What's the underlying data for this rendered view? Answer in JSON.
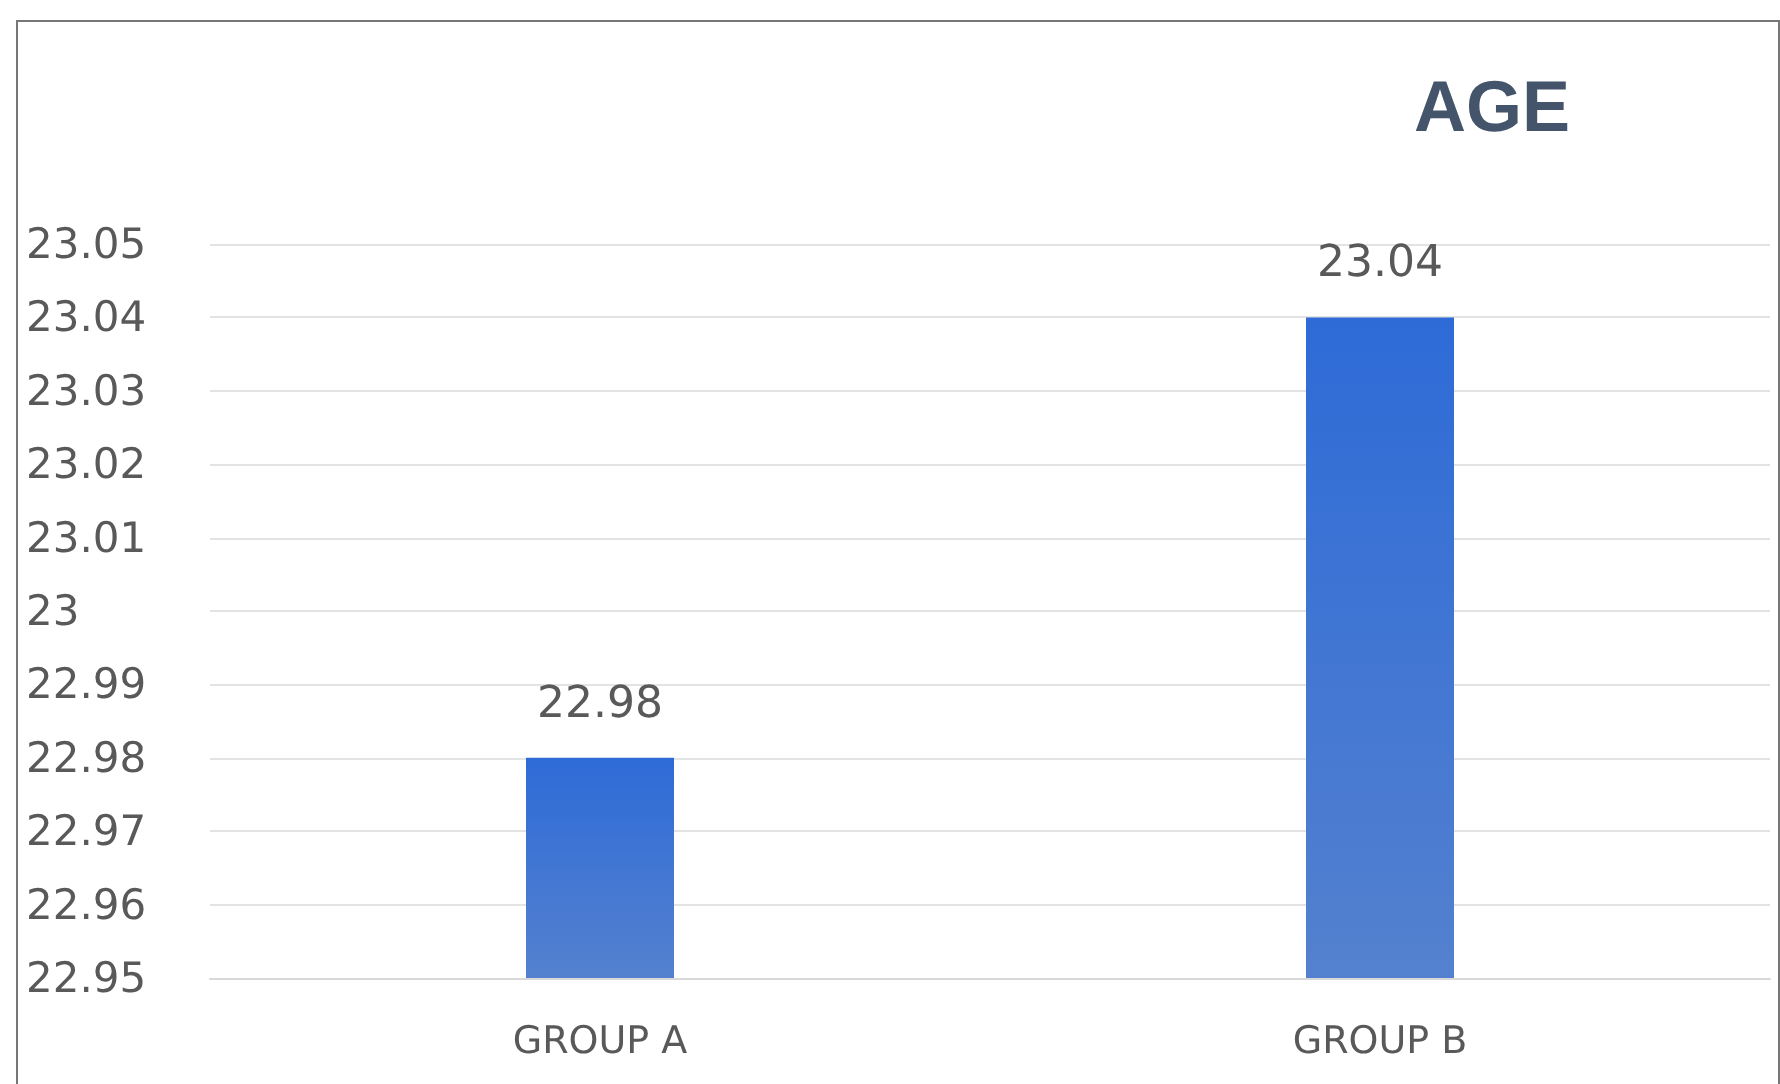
{
  "chart_data": {
    "type": "bar",
    "title": "AGE",
    "categories": [
      "GROUP A",
      "GROUP B"
    ],
    "values": [
      22.98,
      23.04
    ],
    "color": "#2a62c4",
    "ylim": [
      22.95,
      23.05
    ],
    "yticks": [
      22.95,
      22.96,
      22.97,
      22.98,
      22.99,
      23,
      23.01,
      23.02,
      23.03,
      23.04,
      23.05
    ],
    "grid": "y",
    "data_labels": true
  }
}
